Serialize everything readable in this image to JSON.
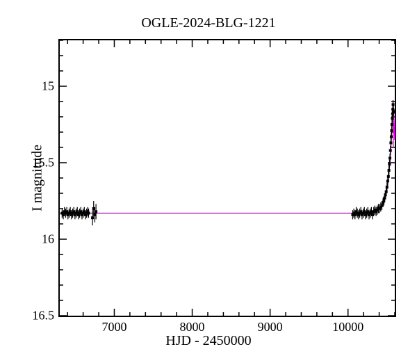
{
  "chart": {
    "type": "scatter+line",
    "title": "OGLE-2024-BLG-1221",
    "xlabel": "HJD - 2450000",
    "ylabel": "I magnitude",
    "title_fontsize": 20,
    "label_fontsize": 20,
    "tick_fontsize": 18,
    "background_color": "#ffffff",
    "axis_color": "#000000",
    "xlim": [
      6300,
      10600
    ],
    "ylim": [
      16.5,
      14.7
    ],
    "y_inverted": true,
    "xticks": [
      7000,
      8000,
      9000,
      10000
    ],
    "yticks": [
      15,
      15.5,
      16,
      16.5
    ],
    "minor_ticks_x_step": 200,
    "minor_ticks_y_step": 0.1,
    "major_tick_len": 10,
    "minor_tick_len": 5,
    "model_line": {
      "color": "#ff00ff",
      "width": 1.5,
      "points": [
        [
          6300,
          15.83
        ],
        [
          10050,
          15.83
        ],
        [
          10300,
          15.82
        ],
        [
          10400,
          15.8
        ],
        [
          10450,
          15.76
        ],
        [
          10490,
          15.7
        ],
        [
          10520,
          15.6
        ],
        [
          10540,
          15.48
        ],
        [
          10555,
          15.35
        ],
        [
          10565,
          15.25
        ],
        [
          10573,
          15.17
        ],
        [
          10578,
          15.1
        ],
        [
          10580,
          15.4
        ],
        [
          10582,
          15.12
        ],
        [
          10585,
          15.16
        ],
        [
          10590,
          15.22
        ],
        [
          10600,
          15.35
        ]
      ]
    },
    "data_points": {
      "color": "#000000",
      "marker_size": 4,
      "errorbar_color": "#000000",
      "errorbar_width": 1.2,
      "series": [
        {
          "x": 6330,
          "y": 15.83,
          "ey": 0.03
        },
        {
          "x": 6345,
          "y": 15.84,
          "ey": 0.03
        },
        {
          "x": 6360,
          "y": 15.82,
          "ey": 0.03
        },
        {
          "x": 6375,
          "y": 15.83,
          "ey": 0.03
        },
        {
          "x": 6390,
          "y": 15.82,
          "ey": 0.03
        },
        {
          "x": 6405,
          "y": 15.84,
          "ey": 0.03
        },
        {
          "x": 6420,
          "y": 15.83,
          "ey": 0.03
        },
        {
          "x": 6435,
          "y": 15.82,
          "ey": 0.03
        },
        {
          "x": 6450,
          "y": 15.84,
          "ey": 0.03
        },
        {
          "x": 6465,
          "y": 15.83,
          "ey": 0.03
        },
        {
          "x": 6480,
          "y": 15.82,
          "ey": 0.03
        },
        {
          "x": 6495,
          "y": 15.84,
          "ey": 0.03
        },
        {
          "x": 6510,
          "y": 15.83,
          "ey": 0.03
        },
        {
          "x": 6525,
          "y": 15.82,
          "ey": 0.03
        },
        {
          "x": 6540,
          "y": 15.84,
          "ey": 0.03
        },
        {
          "x": 6555,
          "y": 15.83,
          "ey": 0.03
        },
        {
          "x": 6570,
          "y": 15.82,
          "ey": 0.03
        },
        {
          "x": 6585,
          "y": 15.84,
          "ey": 0.03
        },
        {
          "x": 6600,
          "y": 15.83,
          "ey": 0.03
        },
        {
          "x": 6615,
          "y": 15.82,
          "ey": 0.03
        },
        {
          "x": 6630,
          "y": 15.84,
          "ey": 0.03
        },
        {
          "x": 6645,
          "y": 15.83,
          "ey": 0.03
        },
        {
          "x": 6660,
          "y": 15.82,
          "ey": 0.03
        },
        {
          "x": 6670,
          "y": 15.83,
          "ey": 0.03
        },
        {
          "x": 6720,
          "y": 15.86,
          "ey": 0.05
        },
        {
          "x": 6735,
          "y": 15.8,
          "ey": 0.05
        },
        {
          "x": 6750,
          "y": 15.84,
          "ey": 0.05
        },
        {
          "x": 6765,
          "y": 15.82,
          "ey": 0.05
        },
        {
          "x": 10060,
          "y": 15.84,
          "ey": 0.03
        },
        {
          "x": 10075,
          "y": 15.83,
          "ey": 0.03
        },
        {
          "x": 10090,
          "y": 15.84,
          "ey": 0.03
        },
        {
          "x": 10105,
          "y": 15.82,
          "ey": 0.03
        },
        {
          "x": 10120,
          "y": 15.83,
          "ey": 0.03
        },
        {
          "x": 10135,
          "y": 15.84,
          "ey": 0.03
        },
        {
          "x": 10150,
          "y": 15.83,
          "ey": 0.03
        },
        {
          "x": 10165,
          "y": 15.82,
          "ey": 0.03
        },
        {
          "x": 10180,
          "y": 15.84,
          "ey": 0.03
        },
        {
          "x": 10195,
          "y": 15.83,
          "ey": 0.03
        },
        {
          "x": 10210,
          "y": 15.82,
          "ey": 0.03
        },
        {
          "x": 10225,
          "y": 15.84,
          "ey": 0.03
        },
        {
          "x": 10240,
          "y": 15.83,
          "ey": 0.03
        },
        {
          "x": 10255,
          "y": 15.82,
          "ey": 0.03
        },
        {
          "x": 10270,
          "y": 15.84,
          "ey": 0.03
        },
        {
          "x": 10285,
          "y": 15.83,
          "ey": 0.03
        },
        {
          "x": 10300,
          "y": 15.82,
          "ey": 0.03
        },
        {
          "x": 10315,
          "y": 15.84,
          "ey": 0.03
        },
        {
          "x": 10330,
          "y": 15.82,
          "ey": 0.03
        },
        {
          "x": 10345,
          "y": 15.81,
          "ey": 0.03
        },
        {
          "x": 10360,
          "y": 15.82,
          "ey": 0.03
        },
        {
          "x": 10375,
          "y": 15.81,
          "ey": 0.03
        },
        {
          "x": 10390,
          "y": 15.8,
          "ey": 0.03
        },
        {
          "x": 10405,
          "y": 15.8,
          "ey": 0.03
        },
        {
          "x": 10420,
          "y": 15.79,
          "ey": 0.03
        },
        {
          "x": 10435,
          "y": 15.78,
          "ey": 0.03
        },
        {
          "x": 10450,
          "y": 15.76,
          "ey": 0.03
        },
        {
          "x": 10460,
          "y": 15.75,
          "ey": 0.03
        },
        {
          "x": 10470,
          "y": 15.73,
          "ey": 0.03
        },
        {
          "x": 10480,
          "y": 15.71,
          "ey": 0.03
        },
        {
          "x": 10490,
          "y": 15.69,
          "ey": 0.03
        },
        {
          "x": 10500,
          "y": 15.66,
          "ey": 0.03
        },
        {
          "x": 10510,
          "y": 15.62,
          "ey": 0.03
        },
        {
          "x": 10518,
          "y": 15.59,
          "ey": 0.03
        },
        {
          "x": 10525,
          "y": 15.55,
          "ey": 0.03
        },
        {
          "x": 10532,
          "y": 15.51,
          "ey": 0.03
        },
        {
          "x": 10538,
          "y": 15.47,
          "ey": 0.03
        },
        {
          "x": 10544,
          "y": 15.42,
          "ey": 0.03
        },
        {
          "x": 10550,
          "y": 15.37,
          "ey": 0.03
        },
        {
          "x": 10555,
          "y": 15.33,
          "ey": 0.03
        },
        {
          "x": 10560,
          "y": 15.29,
          "ey": 0.03
        },
        {
          "x": 10564,
          "y": 15.25,
          "ey": 0.03
        },
        {
          "x": 10568,
          "y": 15.21,
          "ey": 0.03
        },
        {
          "x": 10572,
          "y": 15.18,
          "ey": 0.03
        },
        {
          "x": 10575,
          "y": 15.15,
          "ey": 0.03
        },
        {
          "x": 10578,
          "y": 15.12,
          "ey": 0.03
        },
        {
          "x": 10580,
          "y": 15.16,
          "ey": 0.03
        },
        {
          "x": 10582,
          "y": 15.17,
          "ey": 0.03
        }
      ]
    }
  }
}
